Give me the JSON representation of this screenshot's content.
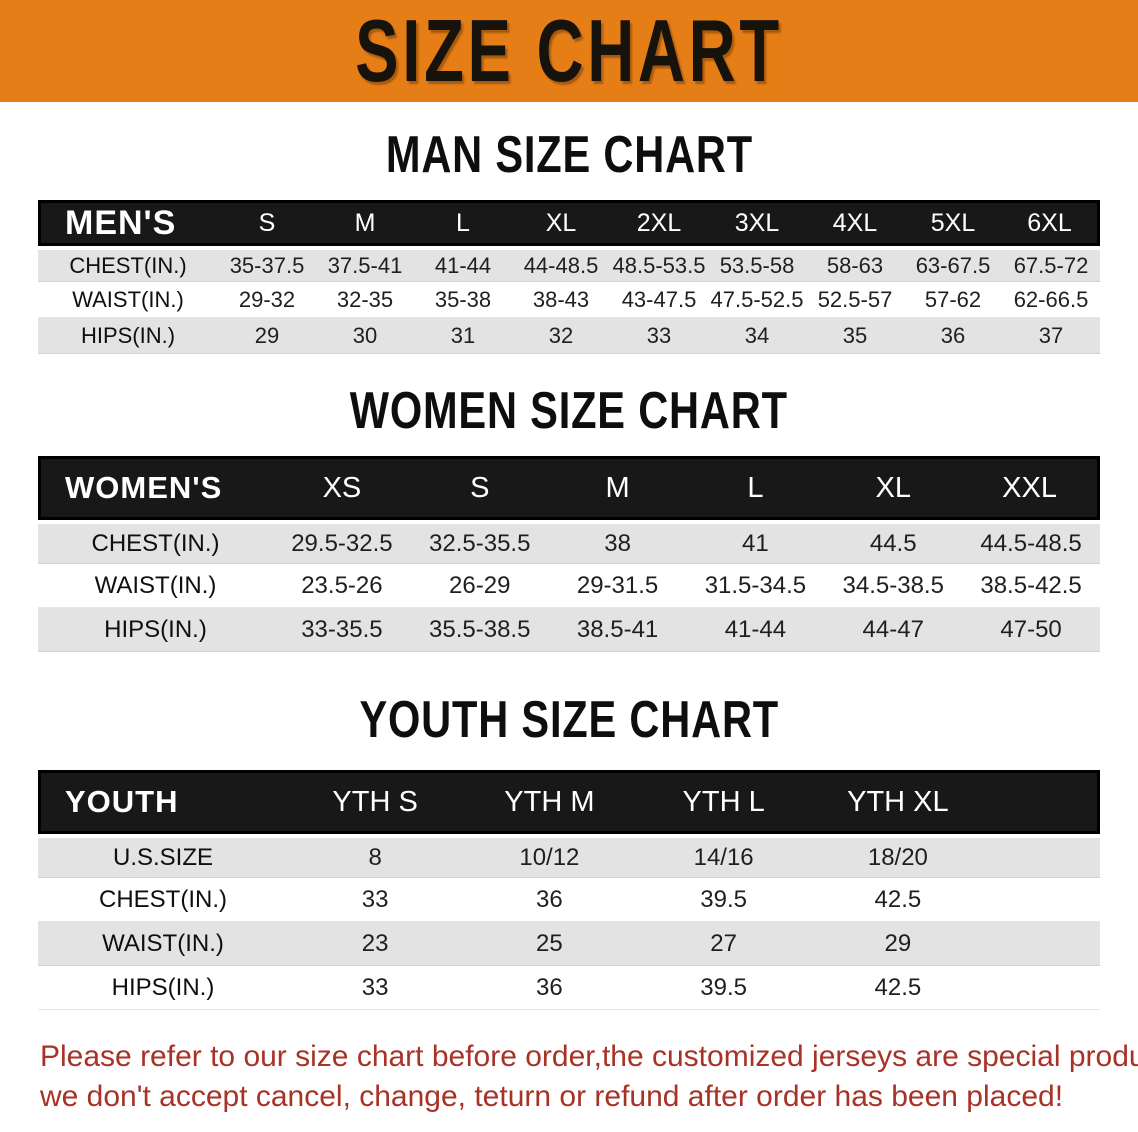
{
  "banner": {
    "title": "SIZE CHART"
  },
  "man": {
    "heading": "MAN SIZE CHART"
  },
  "women": {
    "heading": "WOMEN SIZE CHART"
  },
  "youth": {
    "heading": "YOUTH SIZE CHART"
  },
  "tables": {
    "men": {
      "header": [
        "MEN'S",
        "S",
        "M",
        "L",
        "XL",
        "2XL",
        "3XL",
        "4XL",
        "5XL",
        "6XL"
      ],
      "rows": [
        {
          "label": "CHEST(IN.)",
          "values": [
            "35-37.5",
            "37.5-41",
            "41-44",
            "44-48.5",
            "48.5-53.5",
            "53.5-58",
            "58-63",
            "63-67.5",
            "67.5-72"
          ]
        },
        {
          "label": "WAIST(IN.)",
          "values": [
            "29-32",
            "32-35",
            "35-38",
            "38-43",
            "43-47.5",
            "47.5-52.5",
            "52.5-57",
            "57-62",
            "62-66.5"
          ]
        },
        {
          "label": "HIPS(IN.)",
          "values": [
            "29",
            "30",
            "31",
            "32",
            "33",
            "34",
            "35",
            "36",
            "37"
          ]
        }
      ],
      "filler": false
    },
    "women": {
      "header": [
        "WOMEN'S",
        "XS",
        "S",
        "M",
        "L",
        "XL",
        "XXL"
      ],
      "rows": [
        {
          "label": "CHEST(IN.)",
          "values": [
            "29.5-32.5",
            "32.5-35.5",
            "38",
            "41",
            "44.5",
            "44.5-48.5"
          ]
        },
        {
          "label": "WAIST(IN.)",
          "values": [
            "23.5-26",
            "26-29",
            "29-31.5",
            "31.5-34.5",
            "34.5-38.5",
            "38.5-42.5"
          ]
        },
        {
          "label": "HIPS(IN.)",
          "values": [
            "33-35.5",
            "35.5-38.5",
            "38.5-41",
            "41-44",
            "44-47",
            "47-50"
          ]
        }
      ],
      "filler": false
    },
    "youth": {
      "header": [
        "YOUTH",
        "YTH S",
        "YTH M",
        "YTH L",
        "YTH XL"
      ],
      "rows": [
        {
          "label": "U.S.SIZE",
          "values": [
            "8",
            "10/12",
            "14/16",
            "18/20"
          ]
        },
        {
          "label": "CHEST(IN.)",
          "values": [
            "33",
            "36",
            "39.5",
            "42.5"
          ]
        },
        {
          "label": "WAIST(IN.)",
          "values": [
            "23",
            "25",
            "27",
            "29"
          ]
        },
        {
          "label": "HIPS(IN.)",
          "values": [
            "33",
            "36",
            "39.5",
            "42.5"
          ]
        }
      ],
      "filler": true
    }
  },
  "note": {
    "line1": "Please refer to our size chart before order,the customized jerseys are special products,",
    "line2": "we don't accept cancel, change, teturn or refund after order has been placed!"
  },
  "colors": {
    "banner_bg": "#E67E17",
    "header_bar_bg": "#181818",
    "row_shade": "#E3E3E3",
    "note_color": "#A93226"
  }
}
